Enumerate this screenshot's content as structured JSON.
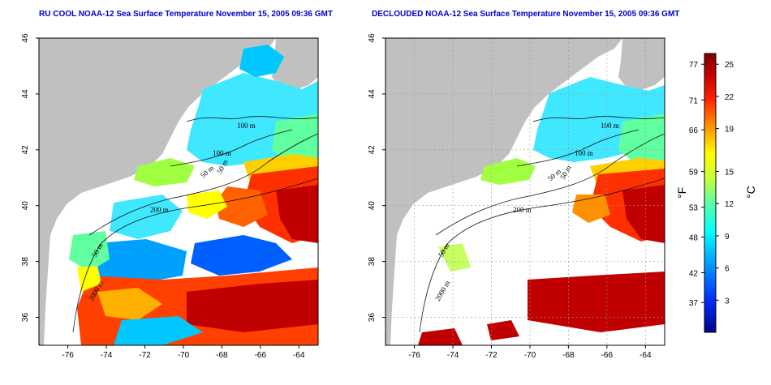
{
  "panels": [
    {
      "id": "left",
      "title": "RU COOL NOAA-12 Sea Surface Temperature November 15, 2005 09:36 GMT",
      "contour_labels": [
        "100 m",
        "100 m",
        "50 m",
        "50 m",
        "200 m",
        "50 m",
        "2000 m"
      ]
    },
    {
      "id": "right",
      "title": "DECLOUDED NOAA-12 Sea Surface Temperature November 15, 2005 09:36 GMT",
      "contour_labels": [
        "100 m",
        "100 m",
        "50 m",
        "50 m",
        "200 m",
        "50 m",
        "2000 m"
      ]
    }
  ],
  "axes": {
    "x_ticks": [
      "-76",
      "-74",
      "-72",
      "-70",
      "-68",
      "-66",
      "-64"
    ],
    "y_ticks": [
      "46",
      "44",
      "42",
      "40",
      "38",
      "36"
    ],
    "lon_range": [
      -77.5,
      -63
    ],
    "lat_range": [
      35,
      46
    ]
  },
  "colorbar": {
    "fahrenheit_label": "°F",
    "celsius_label": "°C",
    "fahrenheit_ticks": [
      "77",
      "71",
      "66",
      "59",
      "53",
      "48",
      "42",
      "37"
    ],
    "celsius_ticks": [
      "25",
      "22",
      "19",
      "15",
      "12",
      "9",
      "6",
      "3"
    ],
    "colors": [
      "#00008f",
      "#0030ff",
      "#00a0ff",
      "#00ffff",
      "#60ff9f",
      "#d0ff30",
      "#ffff00",
      "#ff9000",
      "#ff2000",
      "#c00000",
      "#800000"
    ]
  },
  "colors": {
    "land": "#c0c0c0",
    "cloud": "#ffffff",
    "title": "#0000cc"
  }
}
